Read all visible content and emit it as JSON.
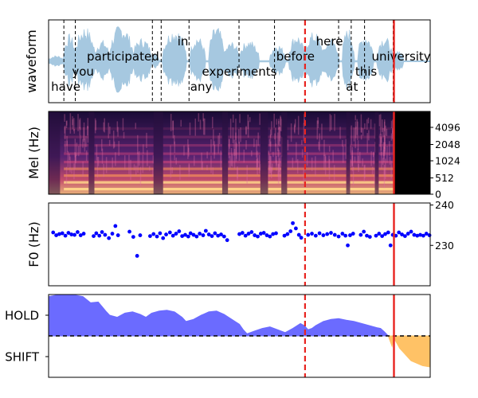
{
  "chart_data": [
    {
      "type": "area",
      "panel": "waveform",
      "ylabel": "waveform",
      "words": [
        {
          "text": "have",
          "x": 0.045,
          "row": 4
        },
        {
          "text": "you",
          "x": 0.09,
          "row": 3
        },
        {
          "text": "participated",
          "x": 0.195,
          "row": 2
        },
        {
          "text": "in",
          "x": 0.352,
          "row": 1
        },
        {
          "text": "any",
          "x": 0.4,
          "row": 4
        },
        {
          "text": "experiments",
          "x": 0.5,
          "row": 3
        },
        {
          "text": "before",
          "x": 0.647,
          "row": 2
        },
        {
          "text": "here",
          "x": 0.736,
          "row": 1
        },
        {
          "text": "at",
          "x": 0.795,
          "row": 4
        },
        {
          "text": "this",
          "x": 0.832,
          "row": 3
        },
        {
          "text": "university",
          "x": 0.924,
          "row": 2
        }
      ],
      "word_boundaries": [
        0.04,
        0.07,
        0.272,
        0.295,
        0.368,
        0.499,
        0.592,
        0.76,
        0.793,
        0.828,
        0.903
      ],
      "current_time": 0.672,
      "end_time": 0.905
    },
    {
      "type": "heatmap",
      "panel": "mel",
      "ylabel": "Mel (Hz)",
      "yticks": [
        "0",
        "512",
        "1024",
        "2048",
        "4096"
      ],
      "current_time": 0.672,
      "end_time": 0.905
    },
    {
      "type": "scatter",
      "panel": "f0",
      "ylabel": "F0 (Hz)",
      "yticks": [
        "230",
        "240"
      ],
      "ylim": [
        220,
        240.5
      ],
      "color": "#0000ff",
      "points": [
        [
          0.012,
          233.2
        ],
        [
          0.02,
          232.5
        ],
        [
          0.028,
          232.8
        ],
        [
          0.036,
          233.0
        ],
        [
          0.044,
          232.4
        ],
        [
          0.052,
          233.1
        ],
        [
          0.06,
          232.7
        ],
        [
          0.068,
          232.6
        ],
        [
          0.076,
          233.3
        ],
        [
          0.084,
          232.5
        ],
        [
          0.092,
          232.9
        ],
        [
          0.118,
          232.3
        ],
        [
          0.125,
          233.0
        ],
        [
          0.133,
          232.4
        ],
        [
          0.14,
          233.3
        ],
        [
          0.148,
          232.6
        ],
        [
          0.158,
          231.8
        ],
        [
          0.167,
          232.9
        ],
        [
          0.175,
          234.8
        ],
        [
          0.182,
          232.5
        ],
        [
          0.212,
          233.4
        ],
        [
          0.222,
          232.1
        ],
        [
          0.232,
          227.4
        ],
        [
          0.24,
          232.5
        ],
        [
          0.266,
          232.3
        ],
        [
          0.275,
          232.8
        ],
        [
          0.284,
          232.2
        ],
        [
          0.292,
          233.0
        ],
        [
          0.3,
          231.8
        ],
        [
          0.308,
          232.7
        ],
        [
          0.318,
          233.2
        ],
        [
          0.326,
          232.4
        ],
        [
          0.334,
          232.9
        ],
        [
          0.342,
          233.5
        ],
        [
          0.35,
          232.3
        ],
        [
          0.358,
          232.6
        ],
        [
          0.366,
          232.2
        ],
        [
          0.372,
          233.0
        ],
        [
          0.38,
          232.6
        ],
        [
          0.388,
          232.2
        ],
        [
          0.396,
          232.9
        ],
        [
          0.405,
          232.5
        ],
        [
          0.412,
          233.6
        ],
        [
          0.42,
          232.7
        ],
        [
          0.428,
          232.3
        ],
        [
          0.436,
          233.0
        ],
        [
          0.444,
          232.4
        ],
        [
          0.452,
          232.7
        ],
        [
          0.46,
          232.2
        ],
        [
          0.468,
          231.3
        ],
        [
          0.5,
          232.8
        ],
        [
          0.508,
          233.1
        ],
        [
          0.516,
          232.4
        ],
        [
          0.524,
          232.9
        ],
        [
          0.532,
          233.3
        ],
        [
          0.54,
          232.5
        ],
        [
          0.548,
          232.2
        ],
        [
          0.556,
          232.9
        ],
        [
          0.564,
          233.1
        ],
        [
          0.572,
          232.5
        ],
        [
          0.58,
          232.2
        ],
        [
          0.588,
          232.8
        ],
        [
          0.596,
          233.0
        ],
        [
          0.618,
          232.4
        ],
        [
          0.626,
          232.8
        ],
        [
          0.634,
          233.5
        ],
        [
          0.64,
          235.5
        ],
        [
          0.648,
          234.2
        ],
        [
          0.656,
          232.6
        ],
        [
          0.662,
          231.9
        ],
        [
          0.68,
          232.6
        ],
        [
          0.69,
          232.9
        ],
        [
          0.7,
          232.4
        ],
        [
          0.71,
          233.0
        ],
        [
          0.72,
          232.5
        ],
        [
          0.73,
          232.8
        ],
        [
          0.74,
          233.1
        ],
        [
          0.75,
          232.6
        ],
        [
          0.76,
          232.2
        ],
        [
          0.77,
          232.9
        ],
        [
          0.778,
          232.4
        ],
        [
          0.784,
          230.0
        ],
        [
          0.79,
          232.5
        ],
        [
          0.798,
          232.9
        ],
        [
          0.818,
          232.6
        ],
        [
          0.826,
          233.4
        ],
        [
          0.834,
          232.4
        ],
        [
          0.842,
          232.1
        ],
        [
          0.858,
          232.4
        ],
        [
          0.866,
          232.9
        ],
        [
          0.874,
          232.3
        ],
        [
          0.882,
          232.8
        ],
        [
          0.89,
          233.2
        ],
        [
          0.896,
          230.0
        ],
        [
          0.902,
          232.6
        ],
        [
          0.91,
          232.4
        ],
        [
          0.918,
          233.2
        ],
        [
          0.926,
          232.7
        ],
        [
          0.934,
          232.3
        ],
        [
          0.942,
          232.9
        ],
        [
          0.95,
          233.4
        ],
        [
          0.958,
          232.6
        ],
        [
          0.966,
          232.4
        ],
        [
          0.974,
          232.6
        ],
        [
          0.982,
          232.4
        ],
        [
          0.99,
          232.9
        ],
        [
          0.998,
          232.5
        ]
      ],
      "current_time": 0.672,
      "end_time": 0.905
    },
    {
      "type": "area",
      "panel": "turn",
      "yticks": [
        "HOLD",
        "SHIFT"
      ],
      "ylim": [
        -1,
        1
      ],
      "hold_color": "#6b6bff",
      "shift_color": "#ffc266",
      "hold_series": [
        [
          0.0,
          0.95
        ],
        [
          0.03,
          1.0
        ],
        [
          0.06,
          1.0
        ],
        [
          0.09,
          0.95
        ],
        [
          0.11,
          0.8
        ],
        [
          0.13,
          0.82
        ],
        [
          0.15,
          0.6
        ],
        [
          0.16,
          0.5
        ],
        [
          0.18,
          0.45
        ],
        [
          0.2,
          0.55
        ],
        [
          0.22,
          0.58
        ],
        [
          0.24,
          0.52
        ],
        [
          0.255,
          0.45
        ],
        [
          0.27,
          0.55
        ],
        [
          0.29,
          0.6
        ],
        [
          0.31,
          0.62
        ],
        [
          0.33,
          0.58
        ],
        [
          0.35,
          0.45
        ],
        [
          0.36,
          0.35
        ],
        [
          0.38,
          0.4
        ],
        [
          0.4,
          0.5
        ],
        [
          0.42,
          0.58
        ],
        [
          0.44,
          0.6
        ],
        [
          0.46,
          0.52
        ],
        [
          0.48,
          0.4
        ],
        [
          0.5,
          0.28
        ],
        [
          0.51,
          0.15
        ],
        [
          0.52,
          0.05
        ],
        [
          0.54,
          0.12
        ],
        [
          0.56,
          0.18
        ],
        [
          0.58,
          0.22
        ],
        [
          0.6,
          0.15
        ],
        [
          0.62,
          0.08
        ],
        [
          0.64,
          0.18
        ],
        [
          0.66,
          0.3
        ],
        [
          0.67,
          0.25
        ],
        [
          0.68,
          0.15
        ],
        [
          0.69,
          0.18
        ],
        [
          0.7,
          0.25
        ],
        [
          0.72,
          0.35
        ],
        [
          0.74,
          0.4
        ],
        [
          0.76,
          0.42
        ],
        [
          0.78,
          0.38
        ],
        [
          0.8,
          0.35
        ],
        [
          0.82,
          0.3
        ],
        [
          0.84,
          0.25
        ],
        [
          0.86,
          0.2
        ],
        [
          0.87,
          0.18
        ],
        [
          0.88,
          0.1
        ],
        [
          0.89,
          0.0
        ]
      ],
      "shift_series": [
        [
          0.89,
          0.0
        ],
        [
          0.9,
          -0.25
        ],
        [
          0.905,
          -0.05
        ],
        [
          0.92,
          -0.3
        ],
        [
          0.95,
          -0.6
        ],
        [
          0.98,
          -0.72
        ],
        [
          1.0,
          -0.75
        ]
      ],
      "threshold": 0.0,
      "current_time": 0.672,
      "end_time": 0.905
    }
  ]
}
